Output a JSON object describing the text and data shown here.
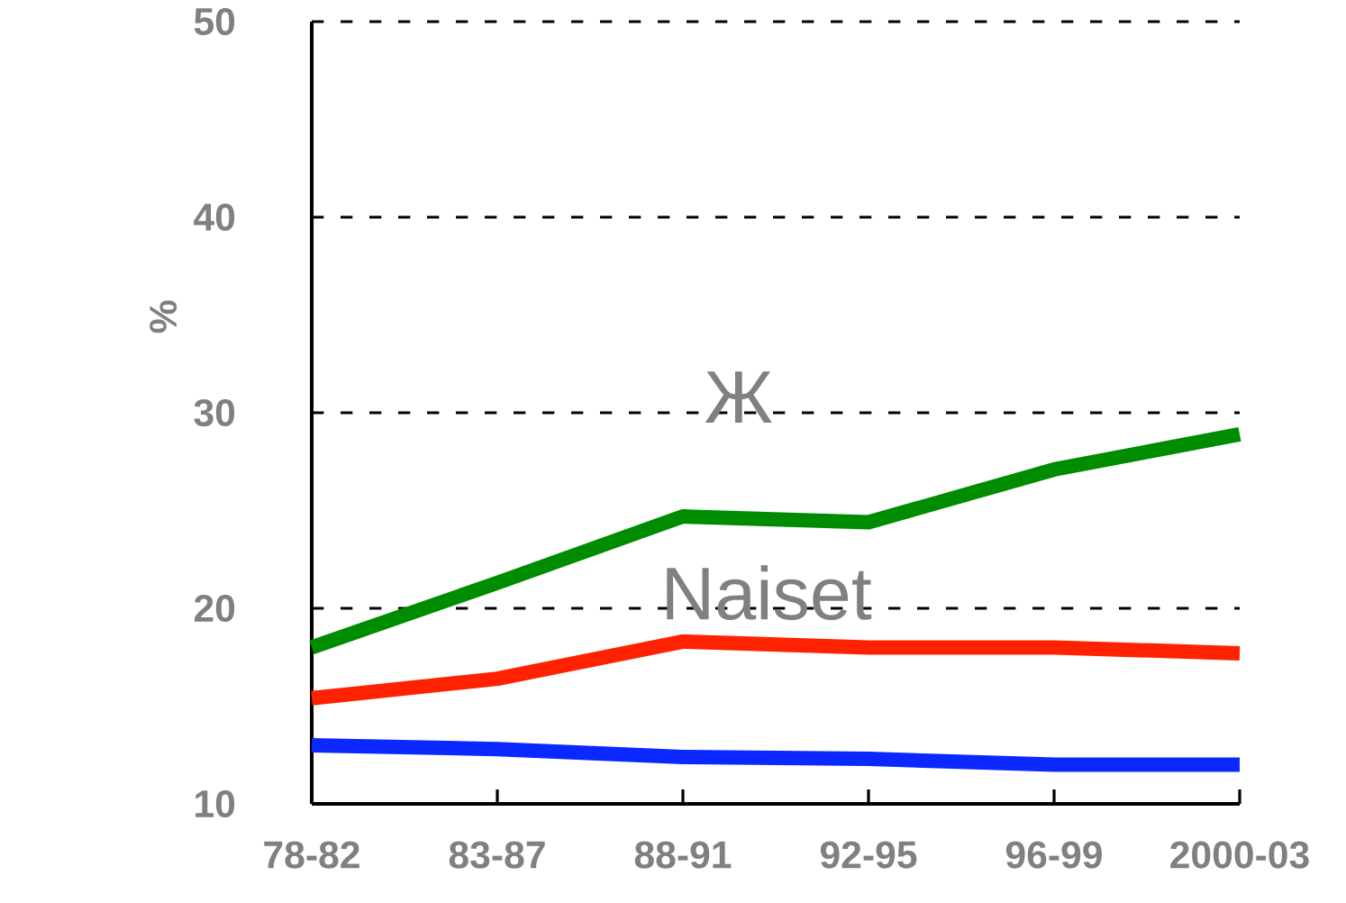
{
  "chart_data": {
    "type": "line",
    "ylabel": "%",
    "categories": [
      "78-82",
      "83-87",
      "88-91",
      "92-95",
      "96-99",
      "2000-03"
    ],
    "series": [
      {
        "color": "#008c00",
        "values": [
          18.0,
          21.3,
          24.7,
          24.4,
          27.1,
          28.9
        ]
      },
      {
        "color": "#ff2200",
        "values": [
          15.4,
          16.4,
          18.3,
          18.0,
          18.0,
          17.7
        ]
      },
      {
        "color": "#0a28ff",
        "values": [
          13.0,
          12.8,
          12.4,
          12.3,
          12.0,
          12.0
        ]
      }
    ],
    "ylim": [
      10,
      50
    ],
    "yticks": [
      10,
      20,
      30,
      40,
      50
    ],
    "grid": "y",
    "legend": false,
    "marker": "none",
    "line_style": "solid",
    "annotations": [
      "Ж",
      "Naiset"
    ]
  }
}
